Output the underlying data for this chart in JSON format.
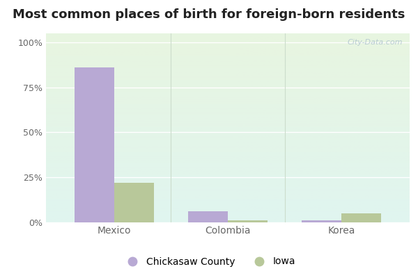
{
  "title": "Most common places of birth for foreign-born residents",
  "categories": [
    "Mexico",
    "Colombia",
    "Korea"
  ],
  "chickasaw_values": [
    86,
    6,
    1
  ],
  "iowa_values": [
    22,
    1,
    5
  ],
  "chickasaw_color": "#b8a9d4",
  "iowa_color": "#b8c89a",
  "yticks": [
    0,
    25,
    50,
    75,
    100
  ],
  "ytick_labels": [
    "0%",
    "25%",
    "50%",
    "75%",
    "100%"
  ],
  "bar_width": 0.35,
  "legend_labels": [
    "Chickasaw County",
    "Iowa"
  ],
  "title_fontsize": 13,
  "outer_bg": "#ffffff",
  "plot_bg_top": "#e0f5f0",
  "plot_bg_bottom": "#e8f5e0",
  "watermark": "City-Data.com",
  "grid_color": "#ffffff",
  "tick_color": "#666666",
  "title_color": "#222222"
}
